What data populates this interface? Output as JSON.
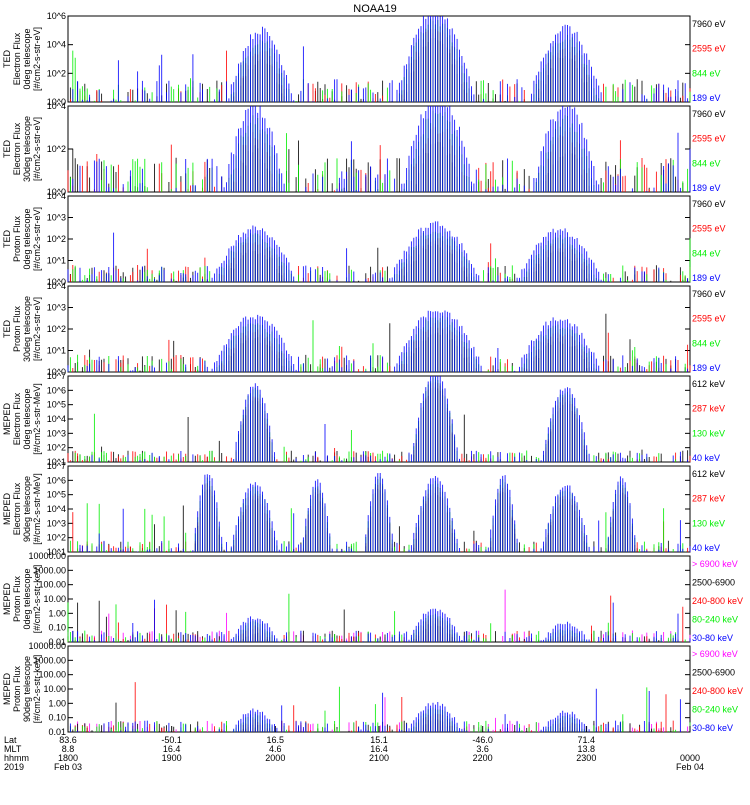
{
  "title": "NOAA19",
  "colors": {
    "black": "#000000",
    "red": "#ff0000",
    "green": "#00ee00",
    "blue": "#0000ff",
    "magenta": "#ff00ff"
  },
  "chart_data": [
    {
      "type": "line",
      "ylabel": [
        "TED",
        "Electron Flux",
        "0deg telescope",
        "[#/cm2-s-str-eV]"
      ],
      "ylim": [
        1,
        1000000
      ],
      "yscale": "log",
      "yticks": [
        "10^0",
        "10^2",
        "10^4",
        "10^6"
      ],
      "legend": [
        {
          "label": "7960 eV",
          "color": "#000000"
        },
        {
          "label": "2595 eV",
          "color": "#ff0000"
        },
        {
          "label": "844 eV",
          "color": "#00ee00"
        },
        {
          "label": "189 eV",
          "color": "#0000ff"
        }
      ],
      "envelopes": [
        {
          "center": 0.31,
          "width": 0.055,
          "peak": 2.5
        },
        {
          "center": 0.59,
          "width": 0.065,
          "peak": 3.2
        },
        {
          "center": 0.8,
          "width": 0.06,
          "peak": 2.6
        }
      ]
    },
    {
      "type": "line",
      "ylabel": [
        "TED",
        "Electron Flux",
        "30deg telescope",
        "[#/cm2-s-str-eV]"
      ],
      "ylim": [
        1,
        10000
      ],
      "yscale": "log",
      "yticks": [
        "10^0",
        "10^2",
        "10^4"
      ],
      "legend": [
        {
          "label": "7960 eV",
          "color": "#000000"
        },
        {
          "label": "2595 eV",
          "color": "#ff0000"
        },
        {
          "label": "844 eV",
          "color": "#00ee00"
        },
        {
          "label": "189 eV",
          "color": "#0000ff"
        }
      ],
      "envelopes": [
        {
          "center": 0.3,
          "width": 0.05,
          "peak": 2.0
        },
        {
          "center": 0.595,
          "width": 0.06,
          "peak": 2.2
        },
        {
          "center": 0.8,
          "width": 0.055,
          "peak": 2.0
        }
      ]
    },
    {
      "type": "line",
      "ylabel": [
        "TED",
        "Proton Flux",
        "0deg telescope",
        "[#/cm2-s-str-eV]"
      ],
      "ylim": [
        1,
        10000
      ],
      "yscale": "log",
      "yticks": [
        "10^0",
        "10^1",
        "10^2",
        "10^3",
        "10^4"
      ],
      "legend": [
        {
          "label": "7960 eV",
          "color": "#000000"
        },
        {
          "label": "2595 eV",
          "color": "#ff0000"
        },
        {
          "label": "844 eV",
          "color": "#00ee00"
        },
        {
          "label": "189 eV",
          "color": "#0000ff"
        }
      ],
      "envelopes": [
        {
          "center": 0.3,
          "width": 0.07,
          "peak": 2.5
        },
        {
          "center": 0.59,
          "width": 0.075,
          "peak": 2.7
        },
        {
          "center": 0.79,
          "width": 0.07,
          "peak": 2.4
        }
      ]
    },
    {
      "type": "line",
      "ylabel": [
        "TED",
        "Proton Flux",
        "30deg telescope",
        "[#/cm2-s-str-eV]"
      ],
      "ylim": [
        1,
        10000
      ],
      "yscale": "log",
      "yticks": [
        "10^0",
        "10^1",
        "10^2",
        "10^3",
        "10^4"
      ],
      "legend": [
        {
          "label": "7960 eV",
          "color": "#000000"
        },
        {
          "label": "2595 eV",
          "color": "#ff0000"
        },
        {
          "label": "844 eV",
          "color": "#00ee00"
        },
        {
          "label": "189 eV",
          "color": "#0000ff"
        }
      ],
      "envelopes": [
        {
          "center": 0.3,
          "width": 0.07,
          "peak": 2.6
        },
        {
          "center": 0.595,
          "width": 0.075,
          "peak": 2.9
        },
        {
          "center": 0.79,
          "width": 0.07,
          "peak": 2.5
        }
      ]
    },
    {
      "type": "line",
      "ylabel": [
        "MEPED",
        "Electron Flux",
        "0deg telescope",
        "[#/cm2-s-str-MeV]"
      ],
      "ylim": [
        1,
        10000000
      ],
      "yscale": "log",
      "yticks": [
        "10^1",
        "10^2",
        "10^3",
        "10^4",
        "10^5",
        "10^6",
        "10^7"
      ],
      "legend": [
        {
          "label": "612 keV",
          "color": "#000000"
        },
        {
          "label": "287 keV",
          "color": "#ff0000"
        },
        {
          "label": "130 keV",
          "color": "#00ee00"
        },
        {
          "label": "40 keV",
          "color": "#0000ff"
        }
      ],
      "envelopes": [
        {
          "center": 0.3,
          "width": 0.035,
          "peak": 5.4
        },
        {
          "center": 0.59,
          "width": 0.04,
          "peak": 6.3
        },
        {
          "center": 0.8,
          "width": 0.04,
          "peak": 5.2
        }
      ]
    },
    {
      "type": "line",
      "ylabel": [
        "MEPED",
        "Electron Flux",
        "90deg telescope",
        "[#/cm2-s-str-MeV]"
      ],
      "ylim": [
        10,
        10000000
      ],
      "yscale": "log",
      "yticks": [
        "10^1",
        "10^2",
        "10^3",
        "10^4",
        "10^5",
        "10^6",
        "10^7"
      ],
      "legend": [
        {
          "label": "612 keV",
          "color": "#000000"
        },
        {
          "label": "287 keV",
          "color": "#ff0000"
        },
        {
          "label": "130 keV",
          "color": "#00ee00"
        },
        {
          "label": "40 keV",
          "color": "#0000ff"
        }
      ],
      "envelopes": [
        {
          "center": 0.225,
          "width": 0.025,
          "peak": 5.5
        },
        {
          "center": 0.3,
          "width": 0.04,
          "peak": 4.8
        },
        {
          "center": 0.4,
          "width": 0.025,
          "peak": 5.0
        },
        {
          "center": 0.5,
          "width": 0.025,
          "peak": 5.5
        },
        {
          "center": 0.59,
          "width": 0.04,
          "peak": 5.2
        },
        {
          "center": 0.7,
          "width": 0.025,
          "peak": 5.3
        },
        {
          "center": 0.8,
          "width": 0.04,
          "peak": 4.7
        },
        {
          "center": 0.89,
          "width": 0.025,
          "peak": 5.2
        }
      ]
    },
    {
      "type": "line",
      "ylabel": [
        "MEPED",
        "Proton Flux",
        "0deg telescope",
        "[#/cm2-s-str-keV]"
      ],
      "ylim": [
        0.01,
        10000
      ],
      "yscale": "log",
      "yticks": [
        "0.01",
        "0.10",
        "1.00",
        "10.00",
        "100.00",
        "1000.00",
        "10000.00"
      ],
      "legend": [
        {
          "label": "> 6900 keV",
          "color": "#ff00ff"
        },
        {
          "label": "2500-6900",
          "color": "#000000"
        },
        {
          "label": "240-800 keV",
          "color": "#ff0000"
        },
        {
          "label": "80-240 keV",
          "color": "#00ee00"
        },
        {
          "label": "30-80 keV",
          "color": "#0000ff"
        }
      ],
      "envelopes": [
        {
          "center": 0.3,
          "width": 0.04,
          "peak": 1.7
        },
        {
          "center": 0.59,
          "width": 0.045,
          "peak": 2.3
        },
        {
          "center": 0.8,
          "width": 0.04,
          "peak": 1.3
        }
      ]
    },
    {
      "type": "line",
      "ylabel": [
        "MEPED",
        "Proton Flux",
        "90deg telescope",
        "[#/cm2-s-str-keV]"
      ],
      "ylim": [
        0.01,
        10000
      ],
      "yscale": "log",
      "yticks": [
        "0.01",
        "0.10",
        "1.00",
        "10.00",
        "100.00",
        "1000.00",
        "10000.00"
      ],
      "legend": [
        {
          "label": "> 6900 keV",
          "color": "#ff00ff"
        },
        {
          "label": "2500-6900",
          "color": "#000000"
        },
        {
          "label": "240-800 keV",
          "color": "#ff0000"
        },
        {
          "label": "80-240 keV",
          "color": "#00ee00"
        },
        {
          "label": "30-80 keV",
          "color": "#0000ff"
        }
      ],
      "envelopes": [
        {
          "center": 0.3,
          "width": 0.04,
          "peak": 1.5
        },
        {
          "center": 0.59,
          "width": 0.045,
          "peak": 2.0
        },
        {
          "center": 0.8,
          "width": 0.04,
          "peak": 1.4
        }
      ]
    }
  ],
  "time_axis": {
    "row_labels": [
      "Lat",
      "MLT",
      "hhmm",
      "2019"
    ],
    "ticks": [
      {
        "t": 0.0,
        "lat": "83.6",
        "mlt": "8.8",
        "hhmm": "1800",
        "date": "Feb 03"
      },
      {
        "t": 0.1667,
        "lat": "-50.1",
        "mlt": "16.4",
        "hhmm": "1900",
        "date": ""
      },
      {
        "t": 0.3333,
        "lat": "16.5",
        "mlt": "4.6",
        "hhmm": "2000",
        "date": ""
      },
      {
        "t": 0.5,
        "lat": "15.1",
        "mlt": "16.4",
        "hhmm": "2100",
        "date": ""
      },
      {
        "t": 0.6667,
        "lat": "-46.0",
        "mlt": "3.6",
        "hhmm": "2200",
        "date": ""
      },
      {
        "t": 0.8333,
        "lat": "71.4",
        "mlt": "13.8",
        "hhmm": "2300",
        "date": ""
      },
      {
        "t": 1.0,
        "lat": "",
        "mlt": "",
        "hhmm": "0000",
        "date": "Feb 04"
      }
    ]
  }
}
